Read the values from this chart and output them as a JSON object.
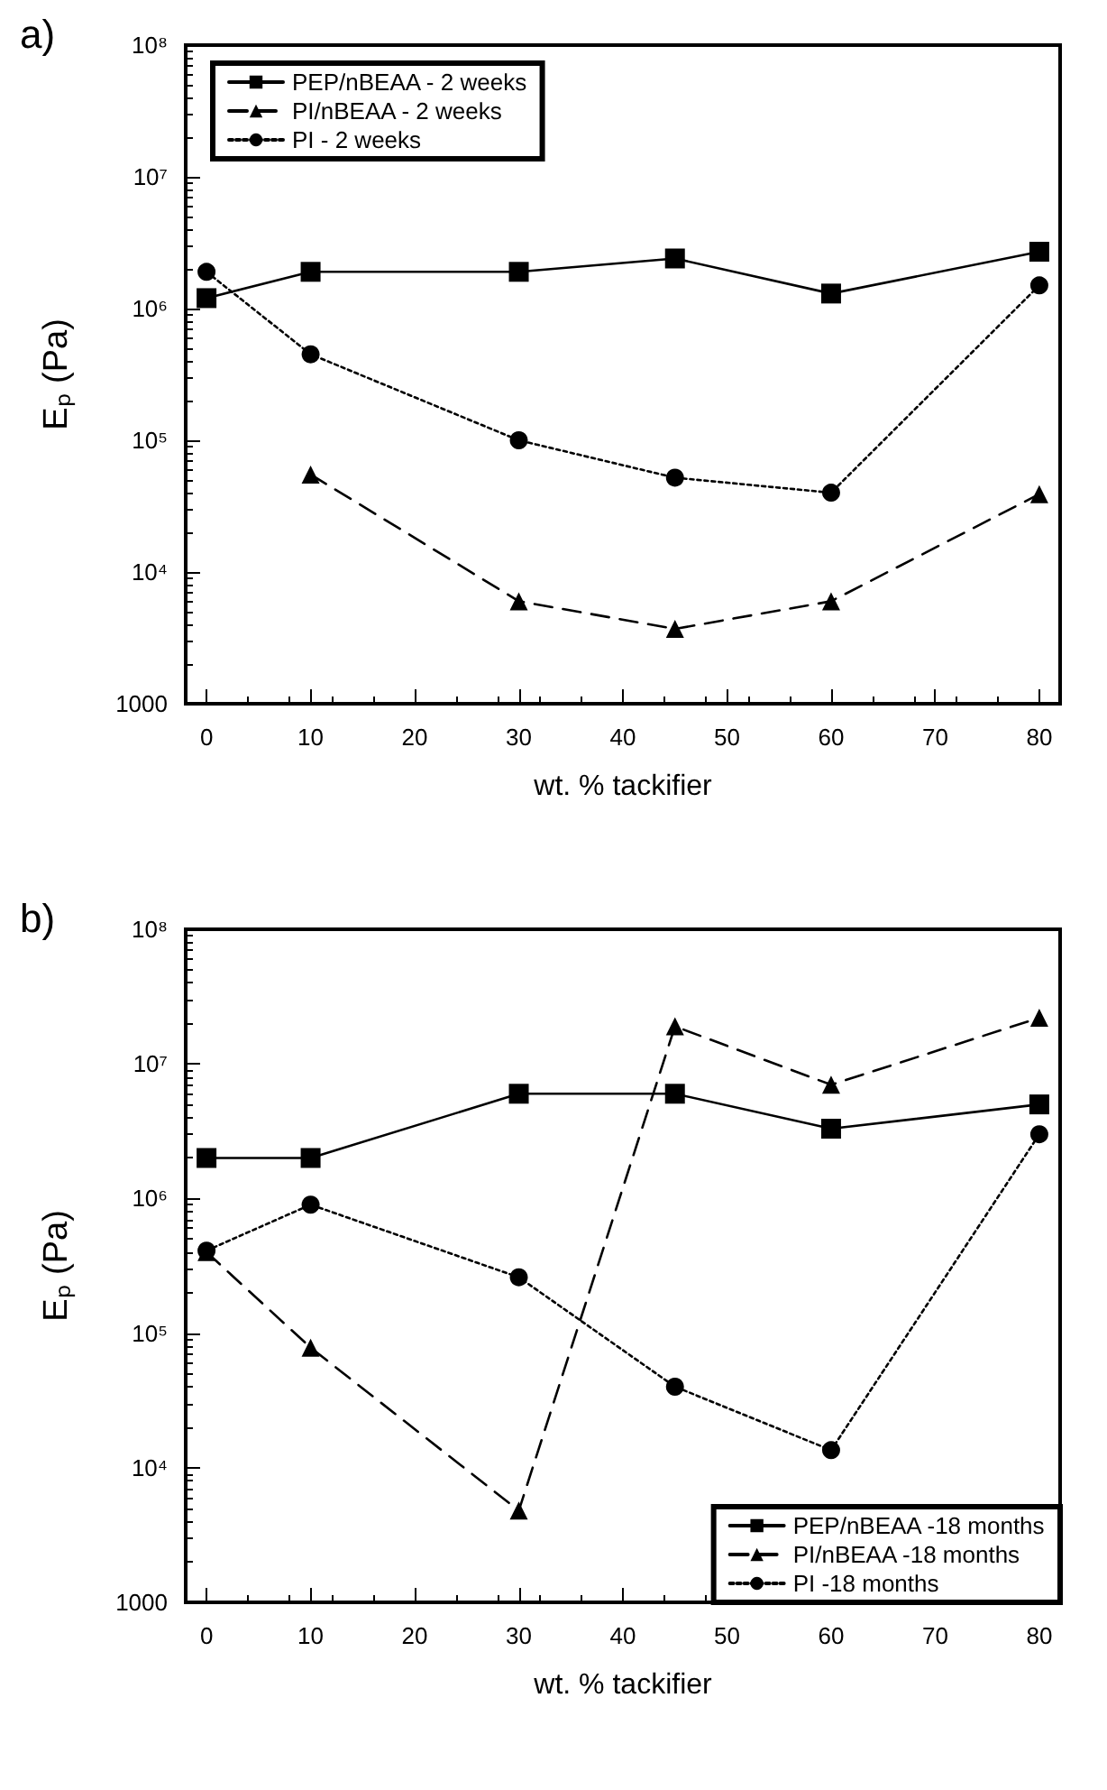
{
  "chart_data": [
    {
      "type": "line",
      "title": "a)",
      "xlabel": "wt. % tackifier",
      "ylabel": "Eₚ (Pa)",
      "x": [
        0,
        10,
        30,
        45,
        60,
        80
      ],
      "log": "y",
      "xlim": [
        -2,
        82
      ],
      "xticks": [
        0,
        10,
        20,
        30,
        40,
        50,
        60,
        70,
        80
      ],
      "ylim": [
        1000,
        100000000
      ],
      "yticks": [
        1000,
        {
          "value": 10000,
          "label": "10⁴"
        },
        {
          "value": 100000,
          "label": "10⁵"
        },
        {
          "value": 1000000,
          "label": "10⁶"
        },
        {
          "value": 10000000,
          "label": "10⁷"
        },
        {
          "value": 100000000,
          "label": "10⁸"
        }
      ],
      "grid": false,
      "legend": "top left",
      "series": [
        {
          "name": "PEP/nBEAA - 2 weeks",
          "color": "#000000",
          "marker": "square",
          "line_style": "solid",
          "values": [
            1200000,
            1900000,
            1900000,
            2400000,
            1300000,
            2700000
          ]
        },
        {
          "name": "PI/nBEAA - 2 weeks",
          "color": "#000000",
          "marker": "triangle",
          "line_style": "dashed",
          "values": [
            null,
            55000,
            6000,
            3700,
            6000,
            39000
          ]
        },
        {
          "name": "PI - 2 weeks",
          "color": "#000000",
          "marker": "circle",
          "line_style": "dotted",
          "values": [
            1900000,
            450000,
            100000,
            52000,
            40000,
            1500000
          ]
        }
      ]
    },
    {
      "type": "line",
      "title": "b)",
      "xlabel": "wt. % tackifier",
      "ylabel": "Eₚ (Pa)",
      "x": [
        0,
        10,
        30,
        45,
        60,
        80
      ],
      "log": "y",
      "xlim": [
        -2,
        82
      ],
      "xticks": [
        0,
        10,
        20,
        30,
        40,
        50,
        60,
        70,
        80
      ],
      "ylim": [
        1000,
        100000000
      ],
      "yticks": [
        1000,
        {
          "value": 10000,
          "label": "10⁴"
        },
        {
          "value": 100000,
          "label": "10⁵"
        },
        {
          "value": 1000000,
          "label": "10⁶"
        },
        {
          "value": 10000000,
          "label": "10⁷"
        },
        {
          "value": 100000000,
          "label": "10⁸"
        }
      ],
      "grid": false,
      "legend": "bottom right",
      "series": [
        {
          "name": "PEP/nBEAA -18 months",
          "color": "#000000",
          "marker": "square",
          "line_style": "solid",
          "values": [
            2000000,
            2000000,
            6000000,
            6000000,
            3300000,
            5000000
          ]
        },
        {
          "name": "PI/nBEAA -18 months",
          "color": "#000000",
          "marker": "triangle",
          "line_style": "dashed",
          "values": [
            400000,
            78000,
            4800,
            19000000,
            7000000,
            22000000
          ]
        },
        {
          "name": "PI -18 months",
          "color": "#000000",
          "marker": "circle",
          "line_style": "dotted",
          "values": [
            410000,
            900000,
            260000,
            40000,
            13500,
            3000000
          ]
        }
      ]
    }
  ]
}
